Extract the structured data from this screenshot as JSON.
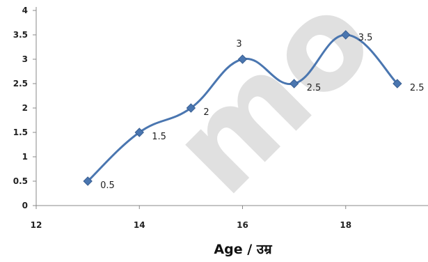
{
  "chart_data": {
    "type": "line",
    "title": "",
    "xlabel": "Age / उम्र",
    "ylabel": "",
    "x": [
      13,
      14,
      15,
      16,
      17,
      18,
      19
    ],
    "series": [
      {
        "values": [
          0.5,
          1.5,
          2,
          3,
          2.5,
          3.5,
          2.5
        ],
        "labels": [
          "0.5",
          "1.5",
          "2",
          "3",
          "2.5",
          "3.5",
          "2.5"
        ]
      }
    ],
    "xlim": [
      12,
      20
    ],
    "ylim": [
      0,
      4
    ],
    "xticks": [
      12,
      14,
      16,
      18
    ],
    "yticks": [
      0,
      0.5,
      1,
      1.5,
      2,
      2.5,
      3,
      3.5,
      4
    ],
    "xtick_labels": [
      "12",
      "14",
      "16",
      "18"
    ],
    "ytick_labels": [
      "0",
      "0.5",
      "1",
      "1.5",
      "2",
      "2.5",
      "3",
      "3.5",
      "4"
    ],
    "grid": false,
    "smooth": true,
    "marker": "diamond",
    "line_color": "#4a76b0",
    "watermark": "mo"
  }
}
